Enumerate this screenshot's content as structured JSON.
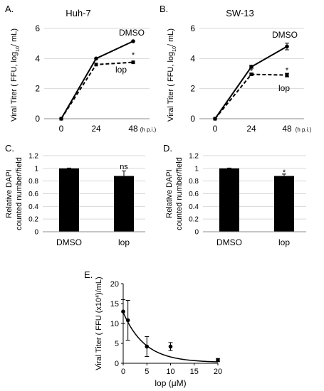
{
  "chart_data": [
    {
      "panel_label": "A.",
      "type": "line",
      "title": "Huh-7",
      "ylabel_parts": [
        "Viral Titer ( FFU, log",
        "10",
        "/ mL)"
      ],
      "x_unit_label": "(h p.i.)",
      "x": [
        0,
        24,
        48
      ],
      "x_tick_labels": [
        "0",
        "24",
        "48"
      ],
      "ylim": [
        0,
        6
      ],
      "y_ticks": [
        0,
        2,
        4,
        6
      ],
      "grid": true,
      "series": [
        {
          "name": "DMSO",
          "style": "solid",
          "values": [
            0,
            4.0,
            5.15
          ],
          "errors": [
            0,
            0,
            0
          ]
        },
        {
          "name": "lop",
          "style": "dashed",
          "values": [
            0,
            3.6,
            3.75
          ],
          "errors": [
            0,
            0,
            0
          ]
        }
      ],
      "annotations": [
        {
          "text": "*",
          "at_x": 48,
          "at_y": 4.2
        }
      ]
    },
    {
      "panel_label": "B.",
      "type": "line",
      "title": "SW-13",
      "ylabel_parts": [
        "Viral Titer ( FFU, log",
        "10",
        "/ mL)"
      ],
      "x_unit_label": "(h p.i.)",
      "x": [
        0,
        24,
        48
      ],
      "x_tick_labels": [
        "0",
        "24",
        "48"
      ],
      "ylim": [
        0,
        6
      ],
      "y_ticks": [
        0,
        2,
        4,
        6
      ],
      "grid": true,
      "series": [
        {
          "name": "DMSO",
          "style": "solid",
          "values": [
            0,
            3.45,
            4.8
          ],
          "errors": [
            0,
            0.1,
            0.22
          ]
        },
        {
          "name": "lop",
          "style": "dashed",
          "values": [
            0,
            2.95,
            2.9
          ],
          "errors": [
            0,
            0.08,
            0.12
          ]
        }
      ],
      "annotations": [
        {
          "text": "*",
          "at_x": 24,
          "at_y": 3.15
        },
        {
          "text": "*",
          "at_x": 48,
          "at_y": 3.2
        }
      ]
    },
    {
      "panel_label": "C.",
      "type": "bar",
      "ylabel_lines": [
        "Relative DAPI",
        "counted number/field"
      ],
      "categories": [
        "DMSO",
        "lop"
      ],
      "values": [
        1.0,
        0.88
      ],
      "errors": [
        0.005,
        0.08
      ],
      "ylim": [
        0,
        1.2
      ],
      "y_ticks": [
        0,
        0.2,
        0.4,
        0.6,
        0.8,
        1,
        1.2
      ],
      "y_tick_labels": [
        "0",
        "0.2",
        "0.4",
        "0.6",
        "0.8",
        "1",
        "1.2"
      ],
      "grid": true,
      "annotations": [
        {
          "text": "ns",
          "category_index": 1,
          "at_y": 1.02
        }
      ]
    },
    {
      "panel_label": "D.",
      "type": "bar",
      "ylabel_lines": [
        "Relative DAPI",
        "counted number/field"
      ],
      "categories": [
        "DMSO",
        "lop"
      ],
      "values": [
        1.0,
        0.88
      ],
      "errors": [
        0.005,
        0.03
      ],
      "ylim": [
        0,
        1.2
      ],
      "y_ticks": [
        0,
        0.2,
        0.4,
        0.6,
        0.8,
        1,
        1.2
      ],
      "y_tick_labels": [
        "0",
        "0.2",
        "0.4",
        "0.6",
        "0.8",
        "1",
        "1.2"
      ],
      "grid": true,
      "annotations": [
        {
          "text": "*",
          "category_index": 1,
          "at_y": 0.93
        }
      ]
    },
    {
      "panel_label": "E.",
      "type": "scatter",
      "ylabel_parts": [
        "Viral Titer ( FFU (x10",
        "4",
        ")/mL)"
      ],
      "xlabel": "lop (μM)",
      "xlim": [
        0,
        20
      ],
      "ylim": [
        0,
        20
      ],
      "x_ticks": [
        0,
        5,
        10,
        15,
        20
      ],
      "y_ticks": [
        0,
        5,
        10,
        15,
        20
      ],
      "grid": false,
      "points": [
        {
          "x": 0,
          "y": 13.0,
          "err": 3.0
        },
        {
          "x": 1,
          "y": 10.8,
          "err": 5.0
        },
        {
          "x": 5,
          "y": 4.2,
          "err": 2.5
        },
        {
          "x": 10,
          "y": 4.2,
          "err": 1.0
        },
        {
          "x": 20,
          "y": 0.8,
          "err": 0.4
        }
      ],
      "fit_curve": {
        "model": "exponential decay",
        "y0": 12.8,
        "k": 0.22,
        "plateau": 0.2
      }
    }
  ]
}
